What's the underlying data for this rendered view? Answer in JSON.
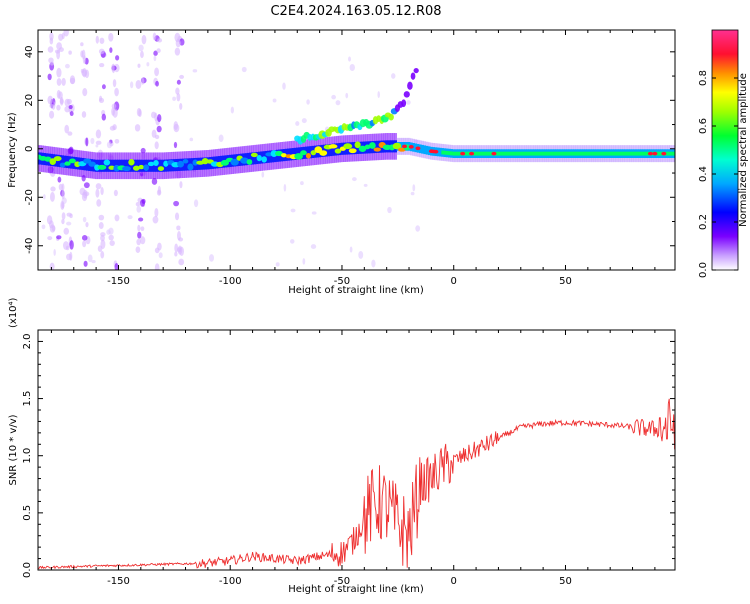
{
  "title": "C2E4.2024.163.05.12.R08",
  "chart_data": [
    {
      "type": "heatmap",
      "xlabel": "Height of straight line (km)",
      "ylabel": "Frequency (Hz)",
      "xlim": [
        -186,
        99
      ],
      "ylim": [
        -50,
        49
      ],
      "x_ticks": [
        -150,
        -100,
        -50,
        0,
        50
      ],
      "x_tick_labels": [
        "-150",
        "-100",
        "-50",
        "0",
        "50"
      ],
      "y_ticks": [
        -40,
        -20,
        0,
        20,
        40
      ],
      "y_tick_labels": [
        "-40",
        "-20",
        "0",
        "20",
        "40"
      ],
      "colorbar": {
        "label": "Normalized spectral amplitude",
        "range": [
          0,
          1
        ],
        "ticks": [
          0,
          0.2,
          0.4,
          0.6,
          0.8
        ],
        "tick_labels": [
          "0.0",
          "0.2",
          "0.4",
          "0.6",
          "0.8"
        ],
        "colormap": [
          "#ffffff",
          "#9a4cff",
          "#0000ff",
          "#00c0ff",
          "#00ff40",
          "#e0ff00",
          "#ff8000",
          "#ff0030",
          "#ff40a0"
        ]
      },
      "main_trace": [
        {
          "x": -185,
          "y": -4
        },
        {
          "x": -160,
          "y": -7
        },
        {
          "x": -130,
          "y": -7
        },
        {
          "x": -110,
          "y": -6
        },
        {
          "x": -90,
          "y": -4
        },
        {
          "x": -70,
          "y": -2
        },
        {
          "x": -50,
          "y": 0
        },
        {
          "x": -30,
          "y": 1
        },
        {
          "x": -20,
          "y": 1
        },
        {
          "x": -10,
          "y": -1
        },
        {
          "x": 0,
          "y": -2
        },
        {
          "x": 50,
          "y": -2
        },
        {
          "x": 99,
          "y": -2
        }
      ],
      "upper_branch": [
        {
          "x": -70,
          "y": 4
        },
        {
          "x": -55,
          "y": 7
        },
        {
          "x": -45,
          "y": 9
        },
        {
          "x": -35,
          "y": 11
        },
        {
          "x": -28,
          "y": 14
        },
        {
          "x": -22,
          "y": 20
        },
        {
          "x": -18,
          "y": 30
        },
        {
          "x": -16,
          "y": 34
        }
      ]
    },
    {
      "type": "line",
      "xlabel": "Height of straight line (km)",
      "ylabel": "SNR (10 * v/v)",
      "y_multiplier_label": "(x10⁴)",
      "xlim": [
        -186,
        99
      ],
      "ylim": [
        0,
        2.1
      ],
      "x_ticks": [
        -150,
        -100,
        -50,
        0,
        50
      ],
      "x_tick_labels": [
        "-150",
        "-100",
        "-50",
        "0",
        "50"
      ],
      "y_ticks": [
        0,
        0.5,
        1.0,
        1.5,
        2.0
      ],
      "y_tick_labels": [
        "0.0",
        "0.5",
        "1.0",
        "1.5",
        "2.0"
      ],
      "color": "#ee3030",
      "series": [
        {
          "values_x": [
            -186,
            -170,
            -150,
            -130,
            -110,
            -100,
            -90,
            -80,
            -70,
            -60,
            -50,
            -45,
            -40,
            -35,
            -30,
            -25,
            -20,
            -15,
            -10,
            -5,
            0,
            5,
            10,
            15,
            20,
            30,
            40,
            50,
            60,
            70,
            80,
            85,
            90,
            95,
            99
          ],
          "values_y": [
            0.02,
            0.03,
            0.04,
            0.05,
            0.06,
            0.08,
            0.12,
            0.1,
            0.08,
            0.12,
            0.15,
            0.25,
            0.45,
            0.6,
            0.55,
            0.4,
            0.3,
            0.75,
            0.8,
            0.9,
            0.95,
            1.0,
            1.05,
            1.1,
            1.15,
            1.25,
            1.28,
            1.29,
            1.28,
            1.27,
            1.25,
            1.24,
            1.23,
            1.25,
            1.3
          ]
        }
      ]
    }
  ]
}
